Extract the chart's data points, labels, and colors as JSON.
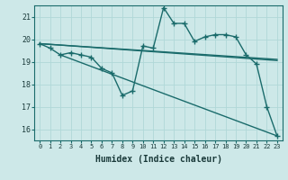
{
  "xlabel": "Humidex (Indice chaleur)",
  "ylabel": "",
  "background_color": "#cde8e8",
  "grid_color": "#b0d8d8",
  "line_color": "#1a6b6b",
  "xlim": [
    -0.5,
    23.5
  ],
  "ylim": [
    15.5,
    21.5
  ],
  "yticks": [
    16,
    17,
    18,
    19,
    20,
    21
  ],
  "xticks": [
    0,
    1,
    2,
    3,
    4,
    5,
    6,
    7,
    8,
    9,
    10,
    11,
    12,
    13,
    14,
    15,
    16,
    17,
    18,
    19,
    20,
    21,
    22,
    23
  ],
  "series": {
    "line1": {
      "x": [
        0,
        1,
        2,
        3,
        4,
        5,
        6,
        7,
        8,
        9,
        10,
        11,
        12,
        13,
        14,
        15,
        16,
        17,
        18,
        19,
        20,
        21,
        22,
        23
      ],
      "y": [
        19.8,
        19.6,
        19.3,
        19.4,
        19.3,
        19.2,
        18.7,
        18.5,
        17.5,
        17.7,
        19.7,
        19.6,
        21.4,
        20.7,
        20.7,
        19.9,
        20.1,
        20.2,
        20.2,
        20.1,
        19.3,
        18.9,
        17.0,
        15.7
      ]
    },
    "line2": {
      "x": [
        0,
        23
      ],
      "y": [
        19.8,
        19.1
      ]
    },
    "line3": {
      "x": [
        0,
        23
      ],
      "y": [
        19.8,
        19.05
      ]
    },
    "line4": {
      "x": [
        2,
        23
      ],
      "y": [
        19.3,
        15.7
      ]
    }
  }
}
